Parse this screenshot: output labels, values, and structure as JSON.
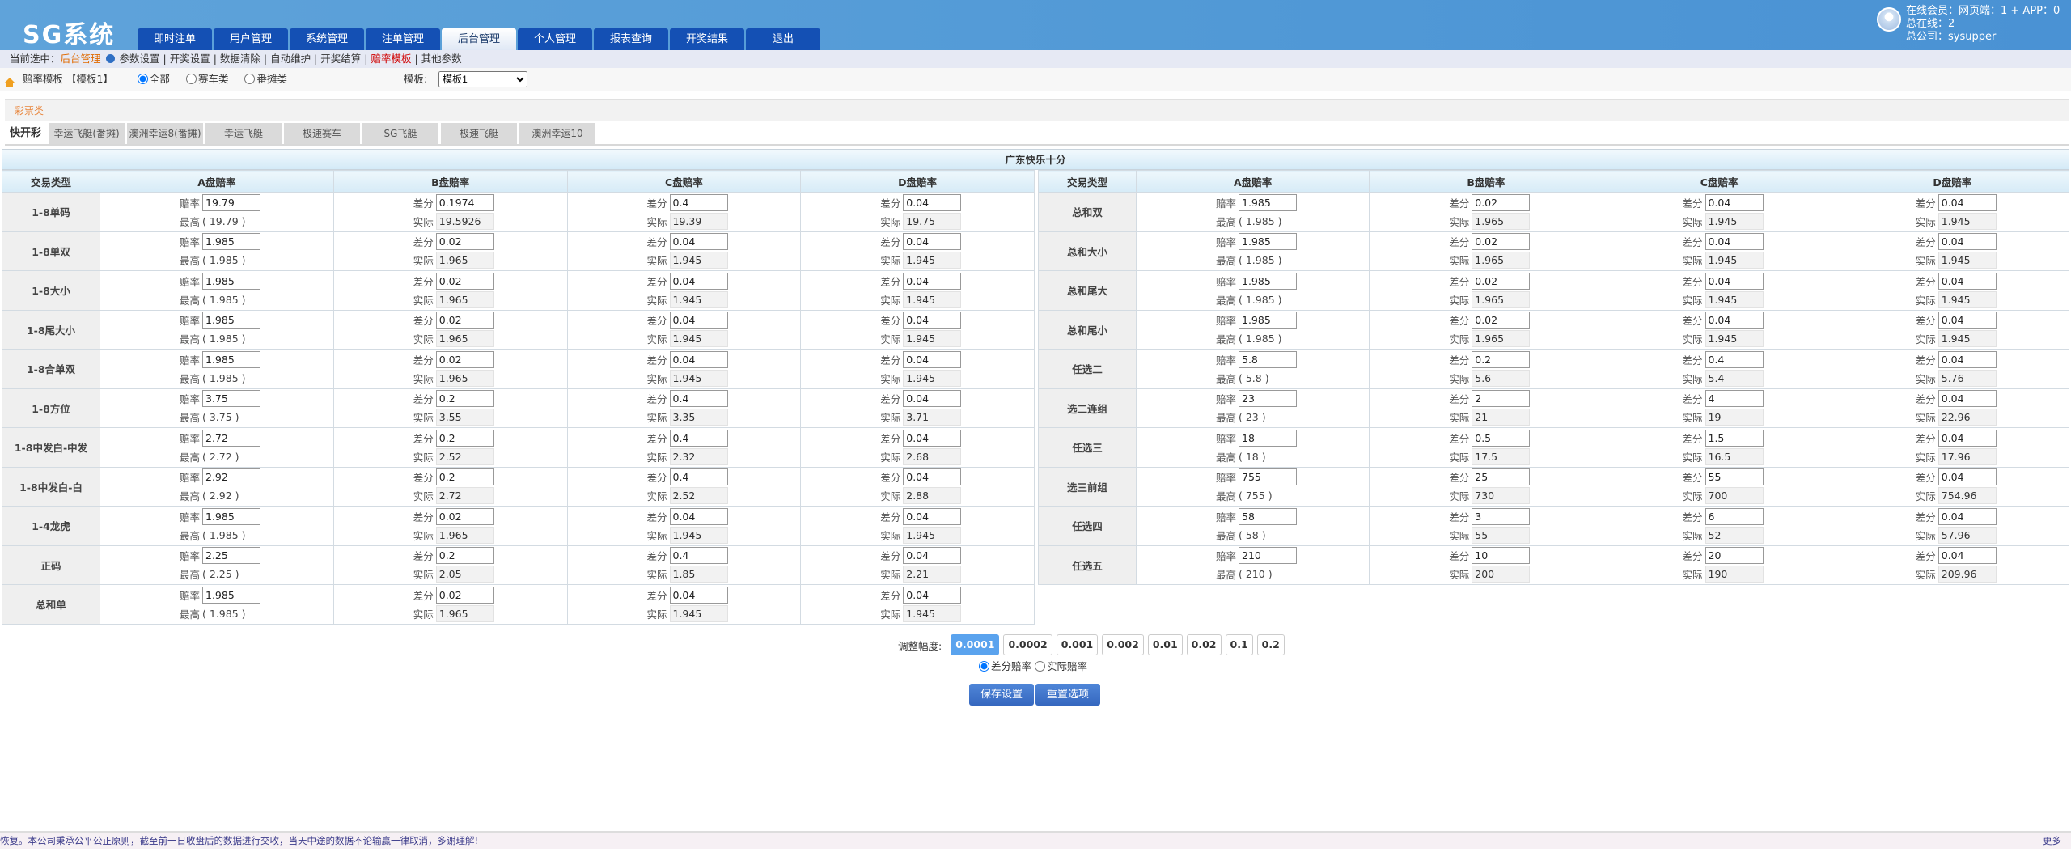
{
  "header": {
    "logo": "SG系统",
    "nav": [
      "即时注单",
      "用户管理",
      "系统管理",
      "注单管理",
      "后台管理",
      "个人管理",
      "报表查询",
      "开奖结果",
      "退出"
    ],
    "active_nav": 4,
    "user": {
      "online": "在线会员：网页端：1 + APP：0",
      "total": "总在线：2",
      "company": "总公司：sysupper"
    }
  },
  "subnav": {
    "prefix": "当前选中：",
    "current": "后台管理",
    "items": [
      "参数设置",
      "开奖设置",
      "数据清除",
      "自动维护",
      "开奖结算",
      "赔率模板",
      "其他参数"
    ],
    "selected": 5
  },
  "filter": {
    "title": "赔率模板 【模板1】",
    "radios": [
      "全部",
      "赛车类",
      "番摊类"
    ],
    "checked": 0,
    "template_label": "模板:",
    "template_value": "模板1"
  },
  "category": "彩票类",
  "game_tabs": {
    "label": "快开彩",
    "tabs": [
      "幸运飞艇(番摊)",
      "澳洲幸运8(番摊)",
      "幸运飞艇",
      "极速赛车",
      "SG飞艇",
      "极速飞艇",
      "澳洲幸运10"
    ]
  },
  "table": {
    "title": "广东快乐十分",
    "headers": [
      "交易类型",
      "A盘赔率",
      "B盘赔率",
      "C盘赔率",
      "D盘赔率"
    ],
    "labels": {
      "odds": "赔率",
      "max": "最高",
      "diff": "差分",
      "actual": "实际"
    },
    "left": [
      [
        "1-8单码",
        "19.79",
        "19.79",
        "0.1974",
        "19.5926",
        "0.4",
        "19.39",
        "0.04",
        "19.75"
      ],
      [
        "1-8单双",
        "1.985",
        "1.985",
        "0.02",
        "1.965",
        "0.04",
        "1.945",
        "0.04",
        "1.945"
      ],
      [
        "1-8大小",
        "1.985",
        "1.985",
        "0.02",
        "1.965",
        "0.04",
        "1.945",
        "0.04",
        "1.945"
      ],
      [
        "1-8尾大小",
        "1.985",
        "1.985",
        "0.02",
        "1.965",
        "0.04",
        "1.945",
        "0.04",
        "1.945"
      ],
      [
        "1-8合单双",
        "1.985",
        "1.985",
        "0.02",
        "1.965",
        "0.04",
        "1.945",
        "0.04",
        "1.945"
      ],
      [
        "1-8方位",
        "3.75",
        "3.75",
        "0.2",
        "3.55",
        "0.4",
        "3.35",
        "0.04",
        "3.71"
      ],
      [
        "1-8中发白-中发",
        "2.72",
        "2.72",
        "0.2",
        "2.52",
        "0.4",
        "2.32",
        "0.04",
        "2.68"
      ],
      [
        "1-8中发白-白",
        "2.92",
        "2.92",
        "0.2",
        "2.72",
        "0.4",
        "2.52",
        "0.04",
        "2.88"
      ],
      [
        "1-4龙虎",
        "1.985",
        "1.985",
        "0.02",
        "1.965",
        "0.04",
        "1.945",
        "0.04",
        "1.945"
      ],
      [
        "正码",
        "2.25",
        "2.25",
        "0.2",
        "2.05",
        "0.4",
        "1.85",
        "0.04",
        "2.21"
      ],
      [
        "总和单",
        "1.985",
        "1.985",
        "0.02",
        "1.965",
        "0.04",
        "1.945",
        "0.04",
        "1.945"
      ]
    ],
    "right": [
      [
        "总和双",
        "1.985",
        "1.985",
        "0.02",
        "1.965",
        "0.04",
        "1.945",
        "0.04",
        "1.945"
      ],
      [
        "总和大小",
        "1.985",
        "1.985",
        "0.02",
        "1.965",
        "0.04",
        "1.945",
        "0.04",
        "1.945"
      ],
      [
        "总和尾大",
        "1.985",
        "1.985",
        "0.02",
        "1.965",
        "0.04",
        "1.945",
        "0.04",
        "1.945"
      ],
      [
        "总和尾小",
        "1.985",
        "1.985",
        "0.02",
        "1.965",
        "0.04",
        "1.945",
        "0.04",
        "1.945"
      ],
      [
        "任选二",
        "5.8",
        "5.8",
        "0.2",
        "5.6",
        "0.4",
        "5.4",
        "0.04",
        "5.76"
      ],
      [
        "选二连组",
        "23",
        "23",
        "2",
        "21",
        "4",
        "19",
        "0.04",
        "22.96"
      ],
      [
        "任选三",
        "18",
        "18",
        "0.5",
        "17.5",
        "1.5",
        "16.5",
        "0.04",
        "17.96"
      ],
      [
        "选三前组",
        "755",
        "755",
        "25",
        "730",
        "55",
        "700",
        "0.04",
        "754.96"
      ],
      [
        "任选四",
        "58",
        "58",
        "3",
        "55",
        "6",
        "52",
        "0.04",
        "57.96"
      ],
      [
        "任选五",
        "210",
        "210",
        "10",
        "200",
        "20",
        "190",
        "0.04",
        "209.96"
      ]
    ]
  },
  "adjust": {
    "label": "调整幅度:",
    "steps": [
      "0.0001",
      "0.0002",
      "0.001",
      "0.002",
      "0.01",
      "0.02",
      "0.1",
      "0.2"
    ],
    "active": 0,
    "modes": [
      "差分赔率",
      "实际赔率"
    ],
    "mode_checked": 0
  },
  "buttons": {
    "save": "保存设置",
    "reset": "重置选项"
  },
  "footer": {
    "notice": "恢复。本公司秉承公平公正原则，截至前一日收盘后的数据进行交收，当天中途的数据不论输赢一律取消，多谢理解!",
    "more": "更多"
  }
}
